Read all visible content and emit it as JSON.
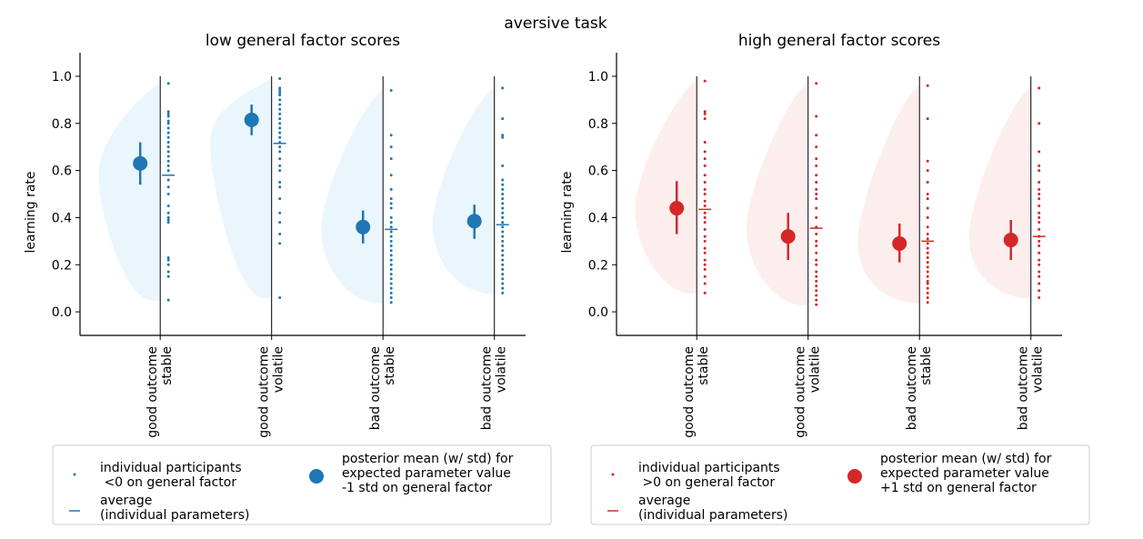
{
  "suptitle": "aversive task",
  "colors": {
    "low": "#1f77b4",
    "high": "#d62728",
    "low_violin": "#eaf6fb",
    "high_violin": "#fdeeee",
    "axis": "#000000",
    "legend_border": "#cccccc"
  },
  "chart_data": [
    {
      "type": "scatter",
      "title": "low general factor scores",
      "xlabel": "",
      "ylabel": "learning rate",
      "ylim": [
        -0.1,
        1.1
      ],
      "yticks": [
        "0.0",
        "0.2",
        "0.4",
        "0.6",
        "0.8",
        "1.0"
      ],
      "categories": [
        "good outcome\nstable",
        "good outcome\nvolatile",
        "bad outcome\nstable",
        "bad outcome\nvolatile"
      ],
      "grid": false,
      "posterior": [
        {
          "mean": 0.63,
          "lo": 0.54,
          "hi": 0.72
        },
        {
          "mean": 0.815,
          "lo": 0.75,
          "hi": 0.88
        },
        {
          "mean": 0.36,
          "lo": 0.29,
          "hi": 0.43
        },
        {
          "mean": 0.385,
          "lo": 0.31,
          "hi": 0.455
        }
      ],
      "averages": [
        0.58,
        0.715,
        0.35,
        0.37
      ],
      "individuals": [
        [
          0.05,
          0.15,
          0.17,
          0.2,
          0.22,
          0.23,
          0.38,
          0.39,
          0.4,
          0.42,
          0.45,
          0.5,
          0.53,
          0.56,
          0.6,
          0.62,
          0.64,
          0.66,
          0.68,
          0.7,
          0.72,
          0.74,
          0.76,
          0.78,
          0.8,
          0.81,
          0.83,
          0.84,
          0.85,
          0.97
        ],
        [
          0.06,
          0.29,
          0.33,
          0.38,
          0.42,
          0.48,
          0.53,
          0.55,
          0.6,
          0.62,
          0.65,
          0.68,
          0.7,
          0.72,
          0.74,
          0.76,
          0.78,
          0.8,
          0.82,
          0.84,
          0.86,
          0.88,
          0.9,
          0.92,
          0.93,
          0.94,
          0.95,
          0.99
        ],
        [
          0.04,
          0.06,
          0.08,
          0.1,
          0.12,
          0.14,
          0.16,
          0.18,
          0.2,
          0.22,
          0.24,
          0.26,
          0.28,
          0.3,
          0.32,
          0.34,
          0.36,
          0.38,
          0.4,
          0.44,
          0.46,
          0.48,
          0.52,
          0.58,
          0.65,
          0.7,
          0.75,
          0.94
        ],
        [
          0.08,
          0.1,
          0.12,
          0.14,
          0.16,
          0.18,
          0.2,
          0.22,
          0.24,
          0.26,
          0.28,
          0.3,
          0.32,
          0.34,
          0.36,
          0.38,
          0.4,
          0.42,
          0.44,
          0.46,
          0.48,
          0.5,
          0.52,
          0.54,
          0.56,
          0.62,
          0.74,
          0.75,
          0.82,
          0.95
        ]
      ]
    },
    {
      "type": "scatter",
      "title": "high general factor scores",
      "xlabel": "",
      "ylabel": "learning rate",
      "ylim": [
        -0.1,
        1.1
      ],
      "yticks": [
        "0.0",
        "0.2",
        "0.4",
        "0.6",
        "0.8",
        "1.0"
      ],
      "categories": [
        "good outcome\nstable",
        "good outcome\nvolatile",
        "bad outcome\nstable",
        "bad outcome\nvolatile"
      ],
      "grid": false,
      "posterior": [
        {
          "mean": 0.44,
          "lo": 0.33,
          "hi": 0.555
        },
        {
          "mean": 0.32,
          "lo": 0.22,
          "hi": 0.42
        },
        {
          "mean": 0.29,
          "lo": 0.21,
          "hi": 0.375
        },
        {
          "mean": 0.305,
          "lo": 0.22,
          "hi": 0.39
        }
      ],
      "averages": [
        0.435,
        0.355,
        0.3,
        0.32
      ],
      "individuals": [
        [
          0.08,
          0.12,
          0.15,
          0.18,
          0.2,
          0.22,
          0.25,
          0.27,
          0.3,
          0.32,
          0.35,
          0.38,
          0.4,
          0.42,
          0.45,
          0.47,
          0.5,
          0.52,
          0.55,
          0.58,
          0.62,
          0.65,
          0.68,
          0.72,
          0.82,
          0.84,
          0.85,
          0.98
        ],
        [
          0.03,
          0.05,
          0.07,
          0.09,
          0.11,
          0.13,
          0.15,
          0.17,
          0.2,
          0.22,
          0.25,
          0.28,
          0.3,
          0.33,
          0.36,
          0.4,
          0.44,
          0.48,
          0.5,
          0.52,
          0.55,
          0.58,
          0.62,
          0.65,
          0.7,
          0.75,
          0.83,
          0.97
        ],
        [
          0.04,
          0.06,
          0.08,
          0.1,
          0.12,
          0.13,
          0.15,
          0.17,
          0.19,
          0.21,
          0.23,
          0.25,
          0.27,
          0.29,
          0.31,
          0.33,
          0.36,
          0.4,
          0.44,
          0.48,
          0.5,
          0.55,
          0.6,
          0.64,
          0.82,
          0.96
        ],
        [
          0.06,
          0.09,
          0.12,
          0.15,
          0.17,
          0.2,
          0.22,
          0.25,
          0.28,
          0.3,
          0.32,
          0.35,
          0.38,
          0.4,
          0.42,
          0.45,
          0.48,
          0.5,
          0.52,
          0.55,
          0.6,
          0.62,
          0.68,
          0.8,
          0.95
        ]
      ]
    }
  ],
  "legends": [
    {
      "entries": [
        {
          "marker": "point",
          "label": "individual participants\n <0 on general factor"
        },
        {
          "marker": "dash",
          "label": "average\n(individual parameters)"
        },
        {
          "marker": "circle",
          "label": "posterior mean (w/ std) for\nexpected parameter value\n-1 std on general factor"
        }
      ]
    },
    {
      "entries": [
        {
          "marker": "point",
          "label": "individual participants\n >0 on general factor"
        },
        {
          "marker": "dash",
          "label": "average\n(individual parameters)"
        },
        {
          "marker": "circle",
          "label": "posterior mean (w/ std) for\nexpected parameter value\n+1 std on general factor"
        }
      ]
    }
  ]
}
